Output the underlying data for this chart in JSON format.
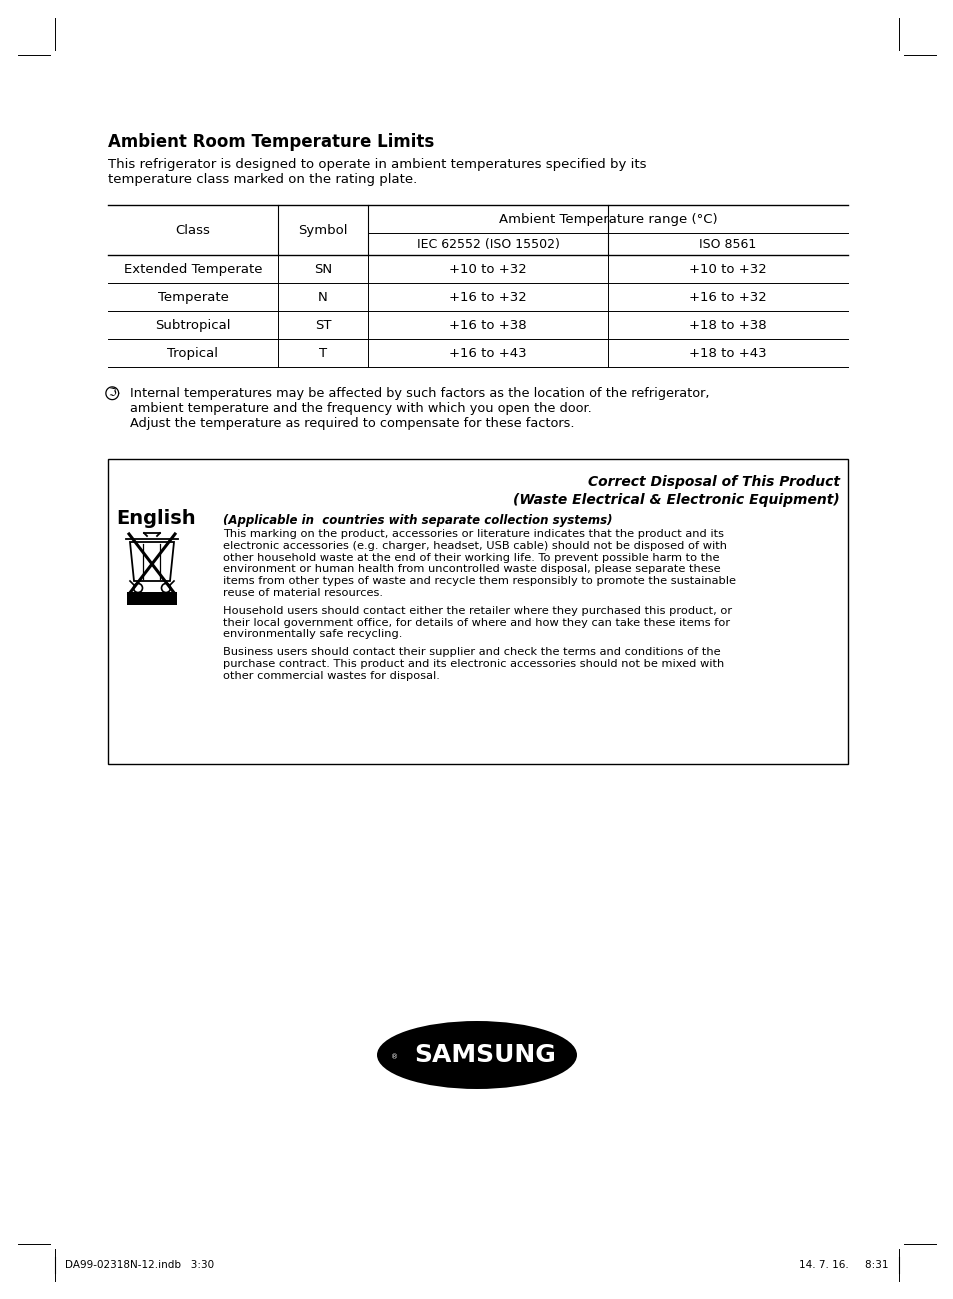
{
  "page_bg": "#ffffff",
  "title": "Ambient Room Temperature Limits",
  "intro_text": "This refrigerator is designed to operate in ambient temperatures specified by its\ntemperature class marked on the rating plate.",
  "table_rows": [
    [
      "Extended Temperate",
      "SN",
      "+10 to +32",
      "+10 to +32"
    ],
    [
      "Temperate",
      "N",
      "+16 to +32",
      "+16 to +32"
    ],
    [
      "Subtropical",
      "ST",
      "+16 to +38",
      "+18 to +38"
    ],
    [
      "Tropical",
      "T",
      "+16 to +43",
      "+18 to +43"
    ]
  ],
  "note_text": "Internal temperatures may be affected by such factors as the location of the refrigerator,\nambient temperature and the frequency with which you open the door.\nAdjust the temperature as required to compensate for these factors.",
  "box_title1": "Correct Disposal of This Product",
  "box_title2": "(Waste Electrical & Electronic Equipment)",
  "box_subtitle": "(Applicable in  countries with separate collection systems)",
  "box_lang": "English",
  "box_para1_lines": [
    "This marking on the product, accessories or literature indicates that the product and its",
    "electronic accessories (e.g. charger, headset, USB cable) should not be disposed of with",
    "other household waste at the end of their working life. To prevent possible harm to the",
    "environment or human health from uncontrolled waste disposal, please separate these",
    "items from other types of waste and recycle them responsibly to promote the sustainable",
    "reuse of material resources."
  ],
  "box_para2_lines": [
    "Household users should contact either the retailer where they purchased this product, or",
    "their local government office, for details of where and how they can take these items for",
    "environmentally safe recycling."
  ],
  "box_para3_lines": [
    "Business users should contact their supplier and check the terms and conditions of the",
    "purchase contract. This product and its electronic accessories should not be mixed with",
    "other commercial wastes for disposal."
  ],
  "footer_left": "DA99-02318N-12.indb   3:30",
  "footer_right": "14. 7. 16.     8:31"
}
